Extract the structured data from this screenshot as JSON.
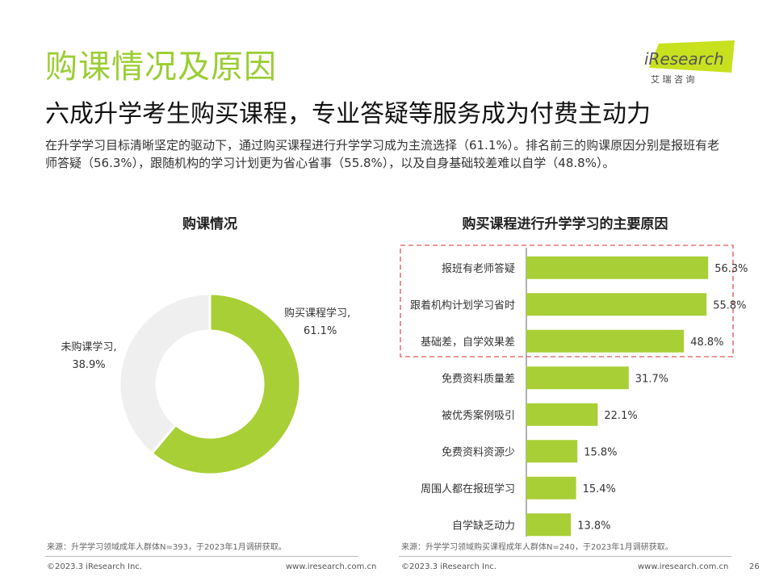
{
  "page": {
    "title": "购课情况及原因",
    "subtitle": "六成升学考生购买课程，专业答疑等服务成为付费主动力",
    "summary": "在升学学习目标清晰坚定的驱动下，通过购买课程进行升学学习成为主流选择（61.1%）。排名前三的购课原因分别是报班有老师答疑（56.3%），跟随机构的学习计划更为省心省事（55.8%），以及自身基础较差难以自学（48.8%）。",
    "page_number": "26"
  },
  "logo": {
    "brand": "iResearch",
    "brand_cn": "艾 瑞 咨 询",
    "accent_color": "#C7E11F"
  },
  "colors": {
    "accent": "#9ACD32",
    "bar": "#A8CF35",
    "donut_rest": "#EFEFEF",
    "highlight_border": "#E57373"
  },
  "chart_data": [
    {
      "type": "pie",
      "title": "购课情况",
      "donut": true,
      "slices": [
        {
          "label": "购买课程学习,",
          "value": 61.1,
          "value_label": "61.1%",
          "color": "#A8CF35"
        },
        {
          "label": "未购课学习,",
          "value": 38.9,
          "value_label": "38.9%",
          "color": "#EFEFEF"
        }
      ]
    },
    {
      "type": "bar",
      "orientation": "horizontal",
      "title": "购买课程进行升学学习的主要原因",
      "categories": [
        "报班有老师答疑",
        "跟着机构计划学习省时",
        "基础差，自学效果差",
        "免费资料质量差",
        "被优秀案例吸引",
        "免费资料资源少",
        "周围人都在报班学习",
        "自学缺乏动力"
      ],
      "values": [
        56.3,
        55.8,
        48.8,
        31.7,
        22.1,
        15.8,
        15.4,
        13.8
      ],
      "value_labels": [
        "56.3%",
        "55.8%",
        "48.8%",
        "31.7%",
        "22.1%",
        "15.8%",
        "15.4%",
        "13.8%"
      ],
      "xlim": [
        0,
        60
      ],
      "highlight": "top three categories enclosed in dashed red box",
      "grid": false
    }
  ],
  "sources": {
    "left": "来源：升学学习领域成年人群体N=393，于2023年1月调研获取。",
    "right": "来源：升学学习领域购买课程成年人群体N=240，于2023年1月调研获取。"
  },
  "footer": {
    "copyright_left": "©2023.3 iResearch Inc.",
    "url_left": "www.iresearch.com.cn",
    "copyright_right": "©2023.3 iResearch Inc.",
    "url_right": "www.iresearch.com.cn"
  }
}
